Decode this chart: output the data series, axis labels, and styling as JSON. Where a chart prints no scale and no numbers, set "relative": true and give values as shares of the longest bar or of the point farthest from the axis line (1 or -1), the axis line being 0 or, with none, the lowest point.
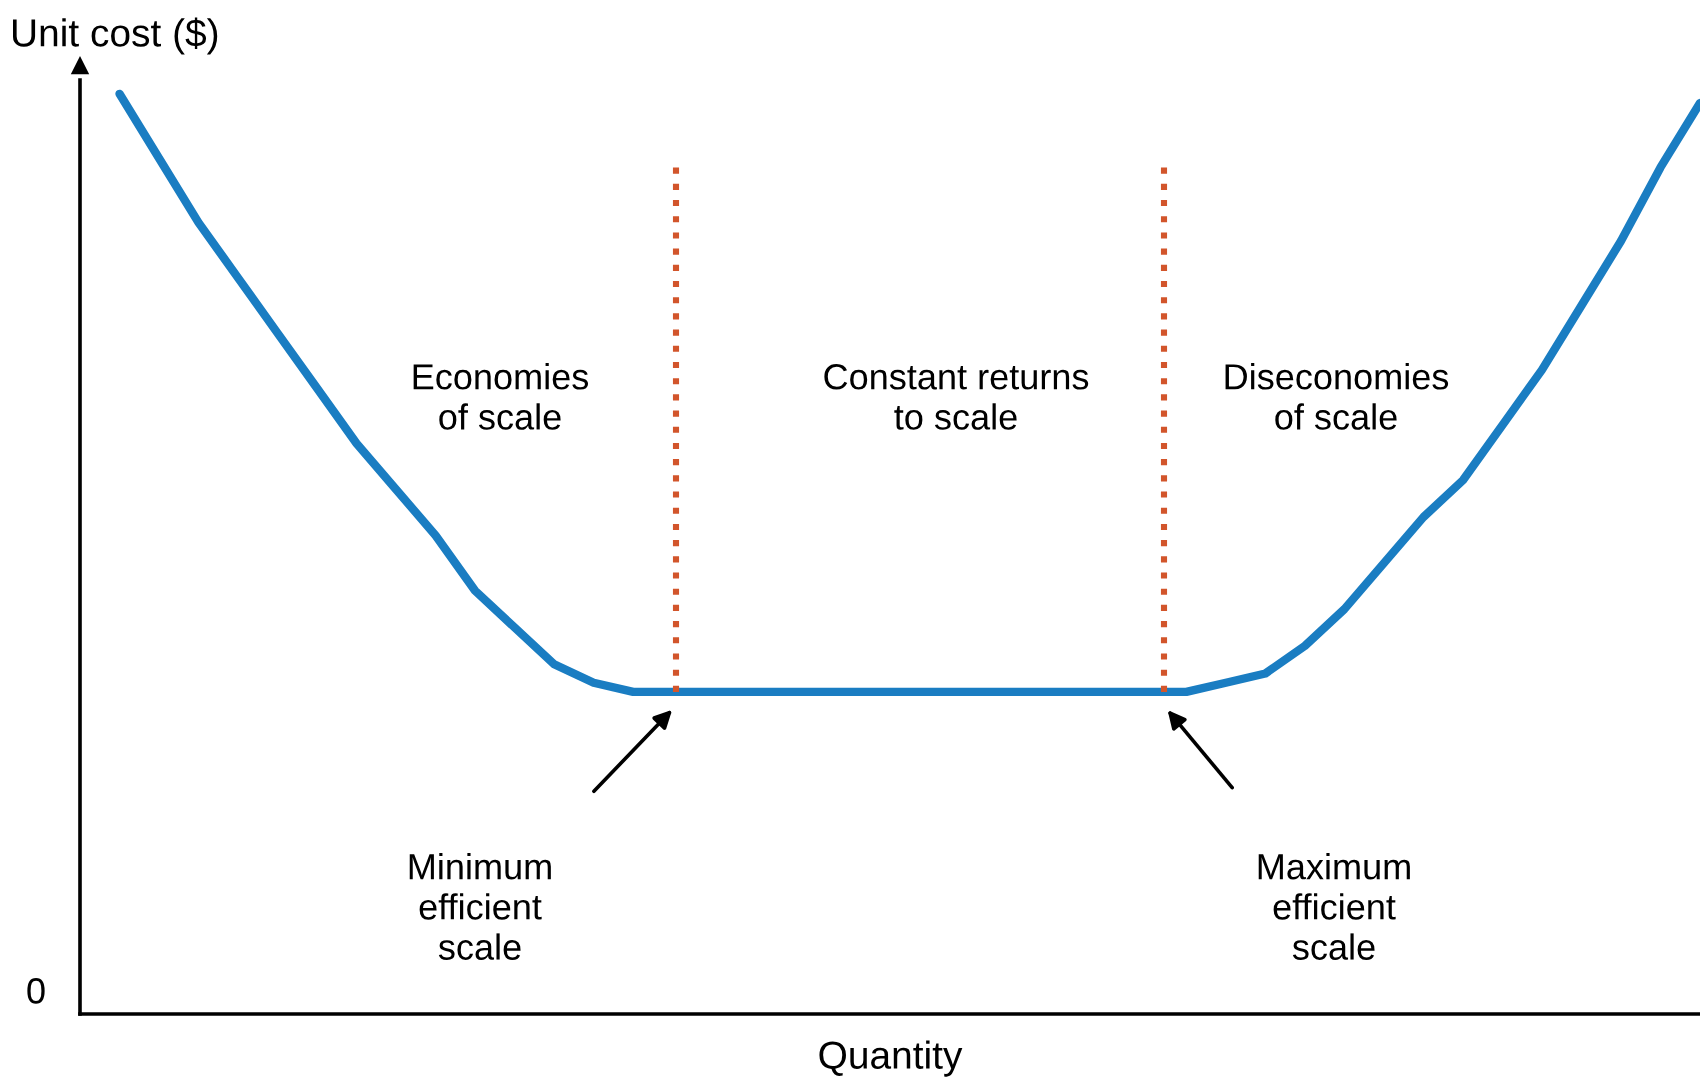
{
  "chart_data": {
    "type": "line",
    "relative": true,
    "xlabel": "Quantity",
    "ylabel": "Unit cost ($)",
    "categories": [
      null,
      null,
      null,
      null,
      null,
      null,
      null,
      null,
      null,
      null,
      null,
      null,
      null,
      null,
      null,
      null,
      null,
      null,
      null,
      null,
      null,
      null,
      null,
      null,
      null,
      null,
      null,
      null,
      null,
      null,
      null,
      null,
      null,
      null,
      null,
      null,
      null,
      null,
      null,
      null,
      null
    ],
    "series": [
      {
        "color": "#1a7dc2",
        "values": [
          1.0,
          0.93,
          0.86,
          0.8,
          0.74,
          0.68,
          0.62,
          0.57,
          0.52,
          0.46,
          0.42,
          0.38,
          0.36,
          0.35,
          0.35,
          0.35,
          0.35,
          0.35,
          0.35,
          0.35,
          0.35,
          0.35,
          0.35,
          0.35,
          0.35,
          0.35,
          0.35,
          0.35,
          0.36,
          0.37,
          0.4,
          0.44,
          0.49,
          0.54,
          0.58,
          0.64,
          0.7,
          0.77,
          0.84,
          0.92,
          0.99
        ]
      }
    ],
    "annotations": [
      "0",
      "Economies\nof scale",
      "Constant returns\nto scale",
      "Diseconomies\nof scale",
      "Minimum\nefficient\nscale",
      "Maximum\nefficient\nscale"
    ],
    "grid": false,
    "legend": false,
    "marker": "none",
    "line_style": "solid"
  }
}
